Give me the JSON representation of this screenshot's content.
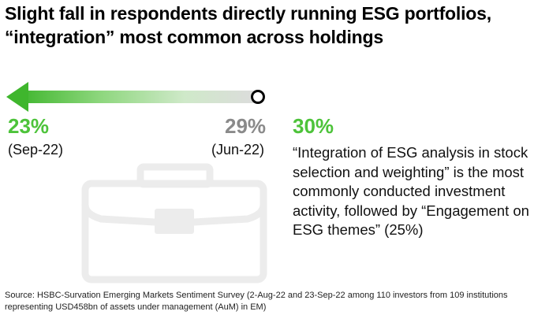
{
  "title": "Slight fall in respondents directly running ESG portfolios, “integration” most common across holdings",
  "left_stat": {
    "value": "23%",
    "date": "(Sep-22)"
  },
  "middle_stat": {
    "value": "29%",
    "date": "(Jun-22)"
  },
  "right_stat": {
    "value": "30%",
    "description": "“Integration of ESG analysis in stock selection and weighting” is the most commonly conducted investment activity, followed by “Engagement on ESG themes” (25%)"
  },
  "source": "Source: HSBC-Survation Emerging Markets Sentiment Survey (2-Aug-22 and 23-Sep-22 among 110 investors from 109 institutions representing USD458bn of assets under management (AuM) in EM)",
  "icons": {
    "arrow": "left-arrow-icon",
    "briefcase": "briefcase-icon"
  },
  "colors": {
    "green": "#4dc33a",
    "grey": "#8a8a8a",
    "icon_grey": "#ececec"
  }
}
